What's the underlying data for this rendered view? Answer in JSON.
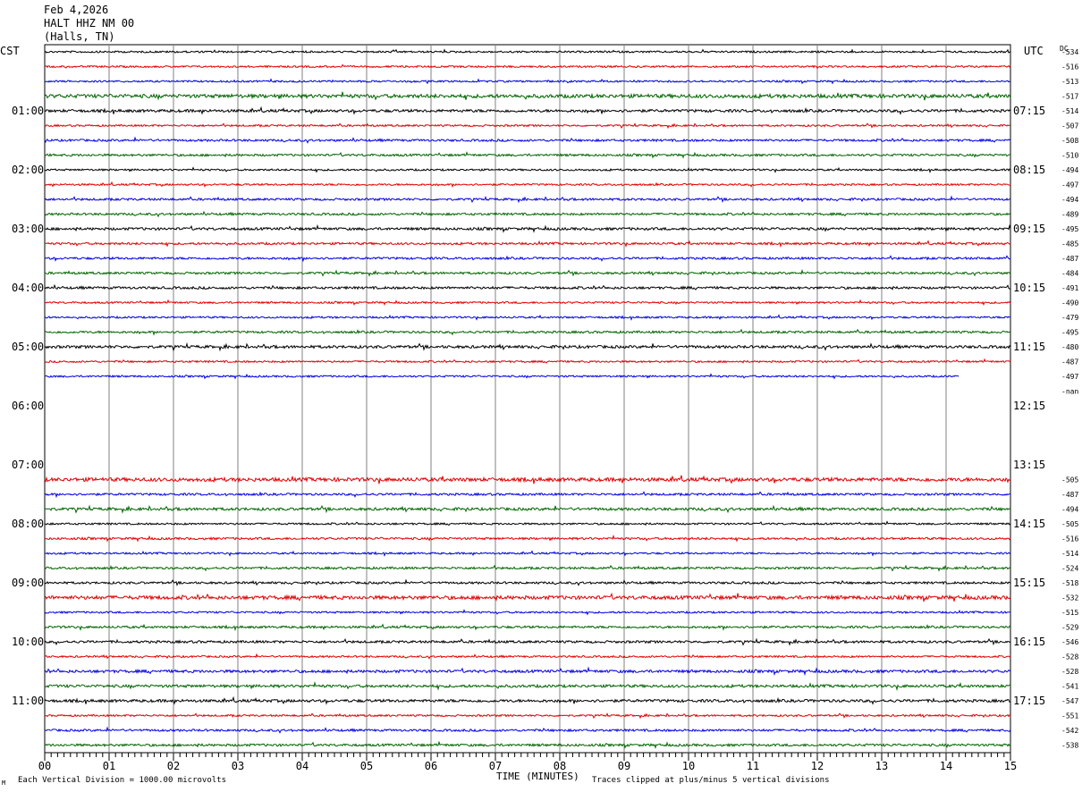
{
  "header": {
    "date": "Feb 4,2026",
    "station": "HALT HHZ NM 00",
    "location": "(Halls, TN)"
  },
  "left_timezone": "CST",
  "right_timezone": "UTC",
  "dc_label": "DC",
  "footer": {
    "scale_note": "Each Vertical Division = 1000.00 microvolts",
    "clip_note": "Traces clipped at plus/minus 5 vertical divisions",
    "corner_mark": "M"
  },
  "colors": {
    "cycle": [
      "#000000",
      "#e00000",
      "#0000e0",
      "#006400"
    ],
    "grid": "#808080"
  },
  "chart_data": {
    "type": "line",
    "title": "",
    "xlabel": "TIME (MINUTES)",
    "x_ticks": [
      "00",
      "01",
      "02",
      "03",
      "04",
      "05",
      "06",
      "07",
      "08",
      "09",
      "10",
      "11",
      "12",
      "13",
      "14",
      "15"
    ],
    "xlim": [
      0,
      15
    ],
    "left_hour_labels": [
      "01:00",
      "02:00",
      "03:00",
      "04:00",
      "05:00",
      "06:00",
      "07:00",
      "08:00",
      "09:00",
      "10:00",
      "11:00"
    ],
    "right_hour_labels": [
      "07:15",
      "08:15",
      "09:15",
      "10:15",
      "11:15",
      "12:15",
      "13:15",
      "14:15",
      "15:15",
      "16:15",
      "17:15"
    ],
    "trace_dc_offsets": [
      "-534",
      "-516",
      "-513",
      "-517",
      "-514",
      "-507",
      "-508",
      "-510",
      "-494",
      "-497",
      "-494",
      "-489",
      "-495",
      "-485",
      "-487",
      "-484",
      "-491",
      "-490",
      "-479",
      "-495",
      "-480",
      "-487",
      "-497",
      "-nan",
      "",
      "",
      "",
      "",
      "",
      "-505",
      "-487",
      "-494",
      "-505",
      "-516",
      "-514",
      "-524",
      "-518",
      "-532",
      "-515",
      "-529",
      "-546",
      "-528",
      "-528",
      "-541",
      "-547",
      "-551",
      "-542",
      "-538"
    ],
    "trace_end_minute": [
      15,
      15,
      15,
      15,
      15,
      15,
      15,
      15,
      15,
      15,
      15,
      15,
      15,
      15,
      15,
      15,
      15,
      15,
      15,
      15,
      15,
      15,
      14.2,
      0,
      0,
      0,
      0,
      0,
      0,
      15,
      15,
      15,
      15,
      15,
      15,
      15,
      15,
      15,
      15,
      15,
      15,
      15,
      15,
      15,
      15,
      15,
      15,
      15
    ],
    "trace_amplitude": [
      1,
      1,
      1,
      2,
      1.5,
      1,
      1.2,
      1.2,
      1,
      1,
      1.2,
      1.2,
      1.4,
      1.2,
      1.2,
      1.2,
      1.3,
      1,
      1,
      1.2,
      1.5,
      1,
      1,
      0,
      0,
      0,
      0,
      0,
      0,
      2,
      1.2,
      1.5,
      1,
      1.2,
      1,
      1.2,
      1.2,
      2,
      1,
      1.2,
      1.3,
      1,
      1.5,
      1.5,
      1.5,
      1,
      1.2,
      1.3
    ],
    "notes": "48 helicorder traces of 15 minutes each, colors cycle black/red/blue/green; rows 24-29 contain no data"
  }
}
